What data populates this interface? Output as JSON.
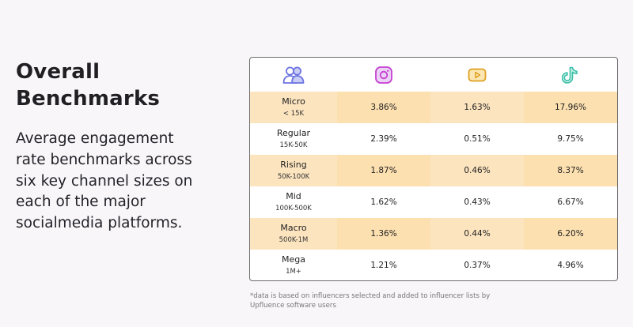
{
  "heading": {
    "title": "Overall Benchmarks",
    "subtitle": "Average engagement rate benchmarks across six key channel sizes on each of the major socialmedia platforms."
  },
  "table": {
    "header_icons": [
      "users-icon",
      "instagram-icon",
      "youtube-icon",
      "tiktok-icon"
    ],
    "rows": [
      {
        "size": "Micro",
        "range": "< 15K",
        "instagram": "3.86%",
        "youtube": "1.63%",
        "tiktok": "17.96%"
      },
      {
        "size": "Regular",
        "range": "15K-50K",
        "instagram": "2.39%",
        "youtube": "0.51%",
        "tiktok": "9.75%"
      },
      {
        "size": "Rising",
        "range": "50K-100K",
        "instagram": "1.87%",
        "youtube": "0.46%",
        "tiktok": "8.37%"
      },
      {
        "size": "Mid",
        "range": "100K-500K",
        "instagram": "1.62%",
        "youtube": "0.43%",
        "tiktok": "6.67%"
      },
      {
        "size": "Macro",
        "range": "500K-1M",
        "instagram": "1.36%",
        "youtube": "0.44%",
        "tiktok": "6.20%"
      },
      {
        "size": "Mega",
        "range": "1M+",
        "instagram": "1.21%",
        "youtube": "0.37%",
        "tiktok": "4.96%"
      }
    ]
  },
  "footnote": "*data is based on influencers selected and added to influencer lists by Upfluence software users",
  "colors": {
    "highlight_row": "#fce4bf",
    "icon_users": "#6b73e0",
    "icon_instagram": "#c43fd1",
    "icon_youtube": "#e0a020",
    "icon_tiktok": "#3bbfa8"
  }
}
